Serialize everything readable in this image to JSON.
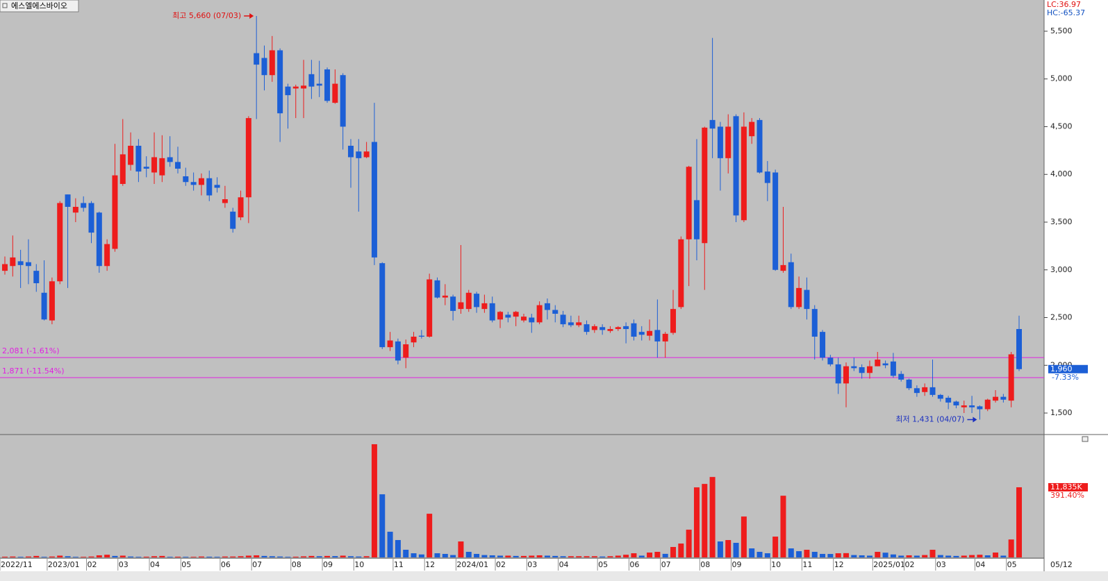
{
  "chart_data": [
    {
      "type": "candlestick",
      "title": "에스엘에스바이오",
      "indicators": [
        "LC:36.97",
        "HC:-65.37"
      ],
      "indicator_colors": [
        "#e01010",
        "#1050c0"
      ],
      "categories": [
        "2022/11",
        null,
        null,
        null,
        null,
        null,
        "2023/01",
        null,
        null,
        null,
        null,
        "02",
        null,
        null,
        null,
        "03",
        null,
        null,
        null,
        "04",
        null,
        null,
        null,
        "05",
        null,
        null,
        null,
        null,
        "06",
        null,
        null,
        null,
        "07",
        null,
        null,
        null,
        null,
        "08",
        null,
        null,
        null,
        "09",
        null,
        null,
        null,
        "10",
        null,
        null,
        null,
        null,
        "11",
        null,
        null,
        null,
        "12",
        null,
        null,
        null,
        "2024/01",
        null,
        null,
        null,
        null,
        "02",
        null,
        null,
        null,
        "03",
        null,
        null,
        null,
        "04",
        null,
        null,
        null,
        null,
        "05",
        null,
        null,
        null,
        "06",
        null,
        null,
        null,
        "07",
        null,
        null,
        null,
        null,
        "08",
        null,
        null,
        null,
        "09",
        null,
        null,
        null,
        null,
        "10",
        null,
        null,
        null,
        "11",
        null,
        null,
        null,
        "12",
        null,
        null,
        null,
        null,
        "2025/01",
        null,
        null,
        null,
        "02",
        null,
        null,
        null,
        "03",
        null,
        null,
        null,
        null,
        "04",
        null,
        null,
        null,
        "05",
        null
      ],
      "x_end_label": "05/12",
      "open": [
        2990,
        3040,
        3090,
        3080,
        2990,
        2760,
        2470,
        2880,
        3790,
        3600,
        3700,
        3700,
        3600,
        3040,
        3220,
        3900,
        4100,
        4300,
        4080,
        4020,
        3990,
        4180,
        4130,
        3980,
        3920,
        3890,
        3960,
        3890,
        3700,
        3610,
        3550,
        3760,
        5270,
        5220,
        5040,
        5300,
        4920,
        4900,
        4900,
        5050,
        4950,
        5100,
        4750,
        5040,
        4300,
        4240,
        4180,
        4340,
        3070,
        2190,
        2250,
        2080,
        2240,
        2310,
        2300,
        2890,
        2710,
        2720,
        2590,
        2590,
        2750,
        2590,
        2650,
        2480,
        2530,
        2510,
        2470,
        2500,
        2450,
        2650,
        2580,
        2530,
        2450,
        2420,
        2430,
        2370,
        2400,
        2360,
        2380,
        2410,
        2440,
        2350,
        2310,
        2370,
        2250,
        2340,
        2610,
        3320,
        3730,
        3280,
        4570,
        4500,
        4170,
        4610,
        3520,
        4400,
        4570,
        4030,
        4020,
        2990,
        3080,
        2610,
        2790,
        2590,
        2350,
        2080,
        2010,
        1810,
        1990,
        1980,
        1920,
        1990,
        2020,
        2040,
        1910,
        1850,
        1760,
        1720,
        1770,
        1690,
        1660,
        1620,
        1560,
        1580,
        1570,
        1540,
        1630,
        1670,
        1630,
        2380
      ],
      "high": [
        3140,
        3360,
        3210,
        3320,
        3060,
        3100,
        2920,
        3720,
        3790,
        3750,
        3770,
        3720,
        3610,
        3320,
        4320,
        4580,
        4440,
        4370,
        4190,
        4440,
        4410,
        4400,
        4290,
        4070,
        4020,
        4010,
        4040,
        3970,
        3880,
        3650,
        3830,
        4610,
        5660,
        5350,
        5450,
        5320,
        4950,
        4940,
        5200,
        5200,
        5190,
        5120,
        5100,
        5060,
        4370,
        4370,
        4340,
        4750,
        3080,
        2350,
        2280,
        2270,
        2350,
        2370,
        2960,
        2920,
        2850,
        2740,
        3260,
        2790,
        2770,
        2740,
        2720,
        2570,
        2560,
        2570,
        2540,
        2540,
        2670,
        2700,
        2630,
        2570,
        2520,
        2520,
        2470,
        2430,
        2430,
        2410,
        2410,
        2450,
        2480,
        2410,
        2480,
        2690,
        2350,
        2790,
        3350,
        4090,
        4370,
        4500,
        5430,
        4550,
        4630,
        4630,
        4650,
        4590,
        4590,
        4140,
        4050,
        3660,
        3170,
        2930,
        2920,
        2630,
        2370,
        2110,
        2080,
        2030,
        2080,
        2010,
        2050,
        2140,
        2050,
        2130,
        1940,
        1860,
        1790,
        1810,
        2060,
        1700,
        1680,
        1630,
        1630,
        1680,
        1580,
        1650,
        1740,
        1700,
        2140,
        2520
      ],
      "low": [
        2950,
        2930,
        2810,
        2850,
        2770,
        2470,
        2430,
        2850,
        2810,
        3500,
        3610,
        3280,
        2970,
        2990,
        3190,
        3880,
        4040,
        3920,
        3970,
        3900,
        3920,
        4080,
        4010,
        3880,
        3830,
        3780,
        3720,
        3810,
        3650,
        3390,
        3520,
        3490,
        4580,
        4880,
        4970,
        4340,
        4480,
        4590,
        4590,
        4790,
        4810,
        4750,
        4740,
        4260,
        3860,
        3610,
        4170,
        3050,
        2170,
        2150,
        2010,
        1970,
        2190,
        2280,
        2290,
        2700,
        2630,
        2470,
        2540,
        2560,
        2550,
        2550,
        2450,
        2390,
        2450,
        2410,
        2450,
        2340,
        2430,
        2480,
        2450,
        2400,
        2400,
        2400,
        2320,
        2340,
        2320,
        2340,
        2360,
        2230,
        2260,
        2260,
        2260,
        2080,
        2080,
        2320,
        2590,
        2830,
        3100,
        2790,
        4170,
        3830,
        4010,
        3500,
        3500,
        4320,
        4010,
        3720,
        2990,
        2970,
        2590,
        2590,
        2480,
        2060,
        2050,
        1990,
        1700,
        1560,
        1940,
        1860,
        1860,
        1990,
        1970,
        1870,
        1830,
        1740,
        1670,
        1680,
        1670,
        1620,
        1540,
        1550,
        1500,
        1500,
        1431,
        1520,
        1610,
        1610,
        1560,
        1940
      ],
      "close": [
        3060,
        3130,
        3050,
        3040,
        2860,
        2480,
        2880,
        3700,
        3660,
        3660,
        3650,
        3390,
        3040,
        3270,
        3990,
        4210,
        4300,
        4030,
        4060,
        4180,
        4170,
        4130,
        4060,
        3920,
        3890,
        3960,
        3780,
        3860,
        3740,
        3430,
        3760,
        4590,
        5150,
        5040,
        5300,
        4640,
        4830,
        4920,
        4930,
        4920,
        4930,
        4770,
        4950,
        4500,
        4180,
        4170,
        4240,
        3130,
        2190,
        2260,
        2050,
        2220,
        2300,
        2300,
        2900,
        2710,
        2730,
        2570,
        2660,
        2760,
        2610,
        2650,
        2470,
        2560,
        2500,
        2560,
        2510,
        2450,
        2630,
        2580,
        2540,
        2430,
        2420,
        2450,
        2350,
        2410,
        2370,
        2380,
        2400,
        2380,
        2300,
        2320,
        2360,
        2250,
        2330,
        2590,
        3320,
        4080,
        3320,
        4490,
        4480,
        4170,
        4500,
        3570,
        4500,
        4550,
        4020,
        3910,
        3000,
        3050,
        2610,
        2810,
        2590,
        2300,
        2080,
        2010,
        1810,
        1990,
        1970,
        1920,
        1990,
        2060,
        2000,
        1890,
        1850,
        1760,
        1710,
        1770,
        1690,
        1650,
        1610,
        1580,
        1580,
        1560,
        1540,
        1640,
        1670,
        1640,
        2115,
        1960
      ],
      "up_color": "#ee1c1c",
      "down_color": "#1c5fd6",
      "ylim": [
        1282,
        5827
      ],
      "yticks": [
        {
          "value": 1500,
          "label": "1,500"
        },
        {
          "value": 2000,
          "label": "2,000"
        },
        {
          "value": 2500,
          "label": "2,500"
        },
        {
          "value": 3000,
          "label": "3,000"
        },
        {
          "value": 3500,
          "label": "3,500"
        },
        {
          "value": 4000,
          "label": "4,000"
        },
        {
          "value": 4500,
          "label": "4,500"
        },
        {
          "value": 5000,
          "label": "5,000"
        },
        {
          "value": 5500,
          "label": "5,500"
        }
      ],
      "hlines": [
        {
          "value": 2081,
          "label": "2,081 (-1.61%)"
        },
        {
          "value": 1871,
          "label": "1,871 (-11.54%)"
        }
      ],
      "hline_color": "#e020e0",
      "annotations": [
        {
          "value": 5660,
          "label": "최고 5,660 (07/03)",
          "kind": "high",
          "color": "#e01010"
        },
        {
          "value": 1431,
          "label": "최저 1,431 (04/07)",
          "kind": "low",
          "color": "#1a2fc0"
        }
      ],
      "current": {
        "value": 1960,
        "label": "1,960",
        "change": "-7.33%"
      }
    },
    {
      "type": "bar",
      "values": [
        120,
        150,
        100,
        150,
        250,
        100,
        150,
        300,
        200,
        100,
        100,
        150,
        350,
        450,
        250,
        300,
        150,
        100,
        120,
        200,
        250,
        100,
        120,
        100,
        100,
        150,
        120,
        100,
        150,
        150,
        200,
        300,
        350,
        250,
        200,
        150,
        100,
        120,
        180,
        250,
        200,
        250,
        220,
        300,
        200,
        150,
        200,
        19100,
        10650,
        4330,
        2930,
        1290,
        700,
        500,
        7370,
        700,
        590,
        400,
        2690,
        940,
        590,
        400,
        350,
        300,
        300,
        250,
        250,
        300,
        350,
        300,
        250,
        200,
        200,
        200,
        200,
        200,
        150,
        200,
        300,
        450,
        700,
        300,
        820,
        940,
        600,
        1760,
        2340,
        4680,
        11820,
        12400,
        13570,
        2690,
        2930,
        2460,
        6900,
        1520,
        940,
        700,
        3510,
        10410,
        1520,
        1050,
        1290,
        940,
        590,
        580,
        700,
        720,
        400,
        350,
        300,
        940,
        800,
        500,
        300,
        350,
        300,
        400,
        1290,
        400,
        300,
        250,
        300,
        400,
        450,
        350,
        820,
        300,
        3024,
        11835
      ],
      "up_color": "#ee1c1c",
      "down_color": "#1c5fd6",
      "ylim": [
        0,
        20500
      ],
      "current": {
        "value": 11835,
        "label": "11,835K",
        "change": "391.40%"
      }
    }
  ]
}
